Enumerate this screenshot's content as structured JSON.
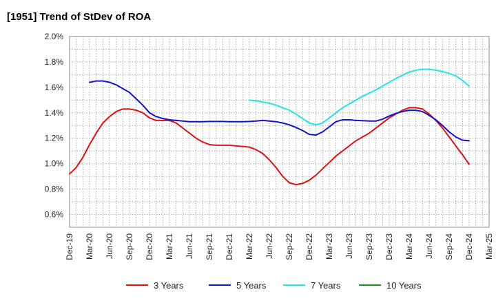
{
  "chart_data": {
    "type": "line",
    "title": "[1951]  Trend of StDev of ROA",
    "xlabel": "",
    "ylabel": "",
    "ylim": [
      0.5,
      2.0
    ],
    "yticks": [
      0.6,
      0.8,
      1.0,
      1.2,
      1.4,
      1.6,
      1.8,
      2.0
    ],
    "ytick_labels": [
      "0.6%",
      "0.8%",
      "1.0%",
      "1.2%",
      "1.4%",
      "1.6%",
      "1.8%",
      "2.0%"
    ],
    "x_categories": [
      "Dec-19",
      "Mar-20",
      "Jun-20",
      "Sep-20",
      "Dec-20",
      "Mar-21",
      "Jun-21",
      "Sep-21",
      "Dec-21",
      "Mar-22",
      "Jun-22",
      "Sep-22",
      "Dec-22",
      "Mar-23",
      "Jun-23",
      "Sep-23",
      "Dec-23",
      "Mar-24",
      "Jun-24",
      "Sep-24",
      "Dec-24",
      "Mar-25"
    ],
    "grid": true,
    "legend_position": "bottom",
    "series": [
      {
        "name": "3 Years",
        "color": "#dd1111",
        "points": [
          [
            "Dec-19",
            0.92
          ],
          [
            "Jan-20",
            0.97
          ],
          [
            "Feb-20",
            1.05
          ],
          [
            "Mar-20",
            1.15
          ],
          [
            "Apr-20",
            1.24
          ],
          [
            "May-20",
            1.32
          ],
          [
            "Jun-20",
            1.37
          ],
          [
            "Jul-20",
            1.41
          ],
          [
            "Aug-20",
            1.43
          ],
          [
            "Sep-20",
            1.43
          ],
          [
            "Oct-20",
            1.42
          ],
          [
            "Nov-20",
            1.4
          ],
          [
            "Dec-20",
            1.36
          ],
          [
            "Jan-21",
            1.34
          ],
          [
            "Feb-21",
            1.34
          ],
          [
            "Mar-21",
            1.34
          ],
          [
            "Apr-21",
            1.32
          ],
          [
            "May-21",
            1.28
          ],
          [
            "Jun-21",
            1.24
          ],
          [
            "Jul-21",
            1.2
          ],
          [
            "Aug-21",
            1.17
          ],
          [
            "Sep-21",
            1.15
          ],
          [
            "Oct-21",
            1.145
          ],
          [
            "Nov-21",
            1.145
          ],
          [
            "Dec-21",
            1.145
          ],
          [
            "Jan-22",
            1.14
          ],
          [
            "Feb-22",
            1.135
          ],
          [
            "Mar-22",
            1.13
          ],
          [
            "Apr-22",
            1.11
          ],
          [
            "May-22",
            1.08
          ],
          [
            "Jun-22",
            1.03
          ],
          [
            "Jul-22",
            0.97
          ],
          [
            "Aug-22",
            0.9
          ],
          [
            "Sep-22",
            0.85
          ],
          [
            "Oct-22",
            0.835
          ],
          [
            "Nov-22",
            0.845
          ],
          [
            "Dec-22",
            0.87
          ],
          [
            "Jan-23",
            0.91
          ],
          [
            "Feb-23",
            0.96
          ],
          [
            "Mar-23",
            1.01
          ],
          [
            "Apr-23",
            1.06
          ],
          [
            "May-23",
            1.1
          ],
          [
            "Jun-23",
            1.14
          ],
          [
            "Jul-23",
            1.18
          ],
          [
            "Aug-23",
            1.21
          ],
          [
            "Sep-23",
            1.24
          ],
          [
            "Oct-23",
            1.28
          ],
          [
            "Nov-23",
            1.32
          ],
          [
            "Dec-23",
            1.36
          ],
          [
            "Jan-24",
            1.39
          ],
          [
            "Feb-24",
            1.42
          ],
          [
            "Mar-24",
            1.44
          ],
          [
            "Apr-24",
            1.44
          ],
          [
            "May-24",
            1.43
          ],
          [
            "Jun-24",
            1.39
          ],
          [
            "Jul-24",
            1.34
          ],
          [
            "Aug-24",
            1.28
          ],
          [
            "Sep-24",
            1.21
          ],
          [
            "Oct-24",
            1.14
          ],
          [
            "Nov-24",
            1.07
          ],
          [
            "Dec-24",
            0.995
          ]
        ]
      },
      {
        "name": "5 Years",
        "color": "#1111cc",
        "points": [
          [
            "Mar-20",
            1.64
          ],
          [
            "Apr-20",
            1.65
          ],
          [
            "May-20",
            1.65
          ],
          [
            "Jun-20",
            1.64
          ],
          [
            "Jul-20",
            1.62
          ],
          [
            "Aug-20",
            1.59
          ],
          [
            "Sep-20",
            1.56
          ],
          [
            "Oct-20",
            1.51
          ],
          [
            "Nov-20",
            1.46
          ],
          [
            "Dec-20",
            1.4
          ],
          [
            "Jan-21",
            1.37
          ],
          [
            "Feb-21",
            1.355
          ],
          [
            "Mar-21",
            1.345
          ],
          [
            "Apr-21",
            1.34
          ],
          [
            "May-21",
            1.335
          ],
          [
            "Jun-21",
            1.33
          ],
          [
            "Jul-21",
            1.33
          ],
          [
            "Aug-21",
            1.33
          ],
          [
            "Sep-21",
            1.332
          ],
          [
            "Oct-21",
            1.332
          ],
          [
            "Nov-21",
            1.332
          ],
          [
            "Dec-21",
            1.33
          ],
          [
            "Jan-22",
            1.33
          ],
          [
            "Feb-22",
            1.33
          ],
          [
            "Mar-22",
            1.332
          ],
          [
            "Apr-22",
            1.335
          ],
          [
            "May-22",
            1.34
          ],
          [
            "Jun-22",
            1.335
          ],
          [
            "Jul-22",
            1.33
          ],
          [
            "Aug-22",
            1.32
          ],
          [
            "Sep-22",
            1.305
          ],
          [
            "Oct-22",
            1.285
          ],
          [
            "Nov-22",
            1.26
          ],
          [
            "Dec-22",
            1.23
          ],
          [
            "Jan-23",
            1.225
          ],
          [
            "Feb-23",
            1.25
          ],
          [
            "Mar-23",
            1.29
          ],
          [
            "Apr-23",
            1.33
          ],
          [
            "May-23",
            1.345
          ],
          [
            "Jun-23",
            1.345
          ],
          [
            "Jul-23",
            1.34
          ],
          [
            "Aug-23",
            1.338
          ],
          [
            "Sep-23",
            1.335
          ],
          [
            "Oct-23",
            1.335
          ],
          [
            "Nov-23",
            1.35
          ],
          [
            "Dec-23",
            1.375
          ],
          [
            "Jan-24",
            1.395
          ],
          [
            "Feb-24",
            1.41
          ],
          [
            "Mar-24",
            1.42
          ],
          [
            "Apr-24",
            1.42
          ],
          [
            "May-24",
            1.41
          ],
          [
            "Jun-24",
            1.38
          ],
          [
            "Jul-24",
            1.345
          ],
          [
            "Aug-24",
            1.3
          ],
          [
            "Sep-24",
            1.25
          ],
          [
            "Oct-24",
            1.21
          ],
          [
            "Nov-24",
            1.185
          ],
          [
            "Dec-24",
            1.18
          ]
        ]
      },
      {
        "name": "7 Years",
        "color": "#22e5e5",
        "points": [
          [
            "Mar-22",
            1.5
          ],
          [
            "Apr-22",
            1.495
          ],
          [
            "May-22",
            1.485
          ],
          [
            "Jun-22",
            1.475
          ],
          [
            "Jul-22",
            1.46
          ],
          [
            "Aug-22",
            1.44
          ],
          [
            "Sep-22",
            1.42
          ],
          [
            "Oct-22",
            1.39
          ],
          [
            "Nov-22",
            1.355
          ],
          [
            "Dec-22",
            1.32
          ],
          [
            "Jan-23",
            1.305
          ],
          [
            "Feb-23",
            1.32
          ],
          [
            "Mar-23",
            1.36
          ],
          [
            "Apr-23",
            1.4
          ],
          [
            "May-23",
            1.44
          ],
          [
            "Jun-23",
            1.47
          ],
          [
            "Jul-23",
            1.5
          ],
          [
            "Aug-23",
            1.53
          ],
          [
            "Sep-23",
            1.555
          ],
          [
            "Oct-23",
            1.58
          ],
          [
            "Nov-23",
            1.61
          ],
          [
            "Dec-23",
            1.64
          ],
          [
            "Jan-24",
            1.67
          ],
          [
            "Feb-24",
            1.695
          ],
          [
            "Mar-24",
            1.72
          ],
          [
            "Apr-24",
            1.735
          ],
          [
            "May-24",
            1.742
          ],
          [
            "Jun-24",
            1.742
          ],
          [
            "Jul-24",
            1.735
          ],
          [
            "Aug-24",
            1.725
          ],
          [
            "Sep-24",
            1.71
          ],
          [
            "Oct-24",
            1.69
          ],
          [
            "Nov-24",
            1.655
          ],
          [
            "Dec-24",
            1.61
          ]
        ]
      },
      {
        "name": "10 Years",
        "color": "#1e8c1e",
        "points": []
      }
    ]
  }
}
